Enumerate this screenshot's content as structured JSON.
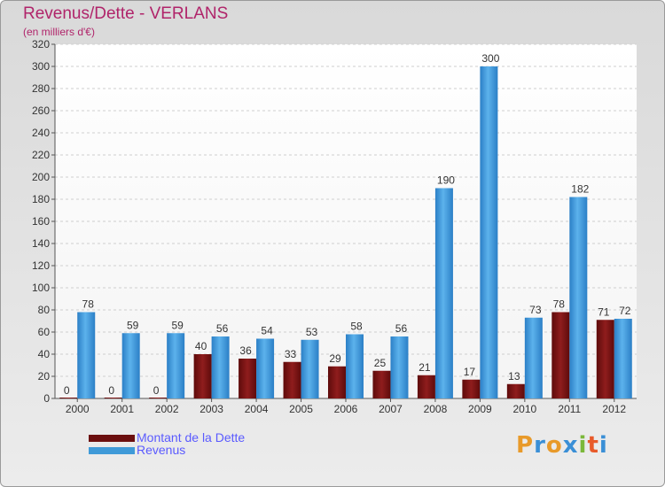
{
  "title": "Revenus/Dette - VERLANS",
  "subtitle": "(en milliers d'€)",
  "logo": {
    "text": "Proxiti",
    "letter_colors": [
      "#e89a2a",
      "#3a8fd6",
      "#e89a2a",
      "#3a8fd6",
      "#7bb83a",
      "#e85a2a",
      "#3a8fd6"
    ]
  },
  "colors": {
    "dette": "#8b1a1a",
    "revenus": "#3f9ad8",
    "title": "#b0246a",
    "legend_text": "#5a5aff"
  },
  "chart_data": {
    "type": "bar",
    "categories": [
      "2000",
      "2001",
      "2002",
      "2003",
      "2004",
      "2005",
      "2006",
      "2007",
      "2008",
      "2009",
      "2010",
      "2011",
      "2012"
    ],
    "series": [
      {
        "name": "Montant de la Dette",
        "values": [
          0,
          0,
          0,
          40,
          36,
          33,
          29,
          25,
          21,
          17,
          13,
          78,
          71
        ]
      },
      {
        "name": "Revenus",
        "values": [
          78,
          59,
          59,
          56,
          54,
          53,
          58,
          56,
          190,
          300,
          73,
          182,
          72
        ]
      }
    ],
    "title": "Revenus/Dette - VERLANS",
    "ylabel": "(en milliers d'€)",
    "ylim": [
      0,
      320
    ],
    "yticks": [
      0,
      20,
      40,
      60,
      80,
      100,
      120,
      140,
      160,
      180,
      200,
      220,
      240,
      260,
      280,
      300,
      320
    ],
    "grid": true,
    "legend_position": "bottom-left"
  }
}
